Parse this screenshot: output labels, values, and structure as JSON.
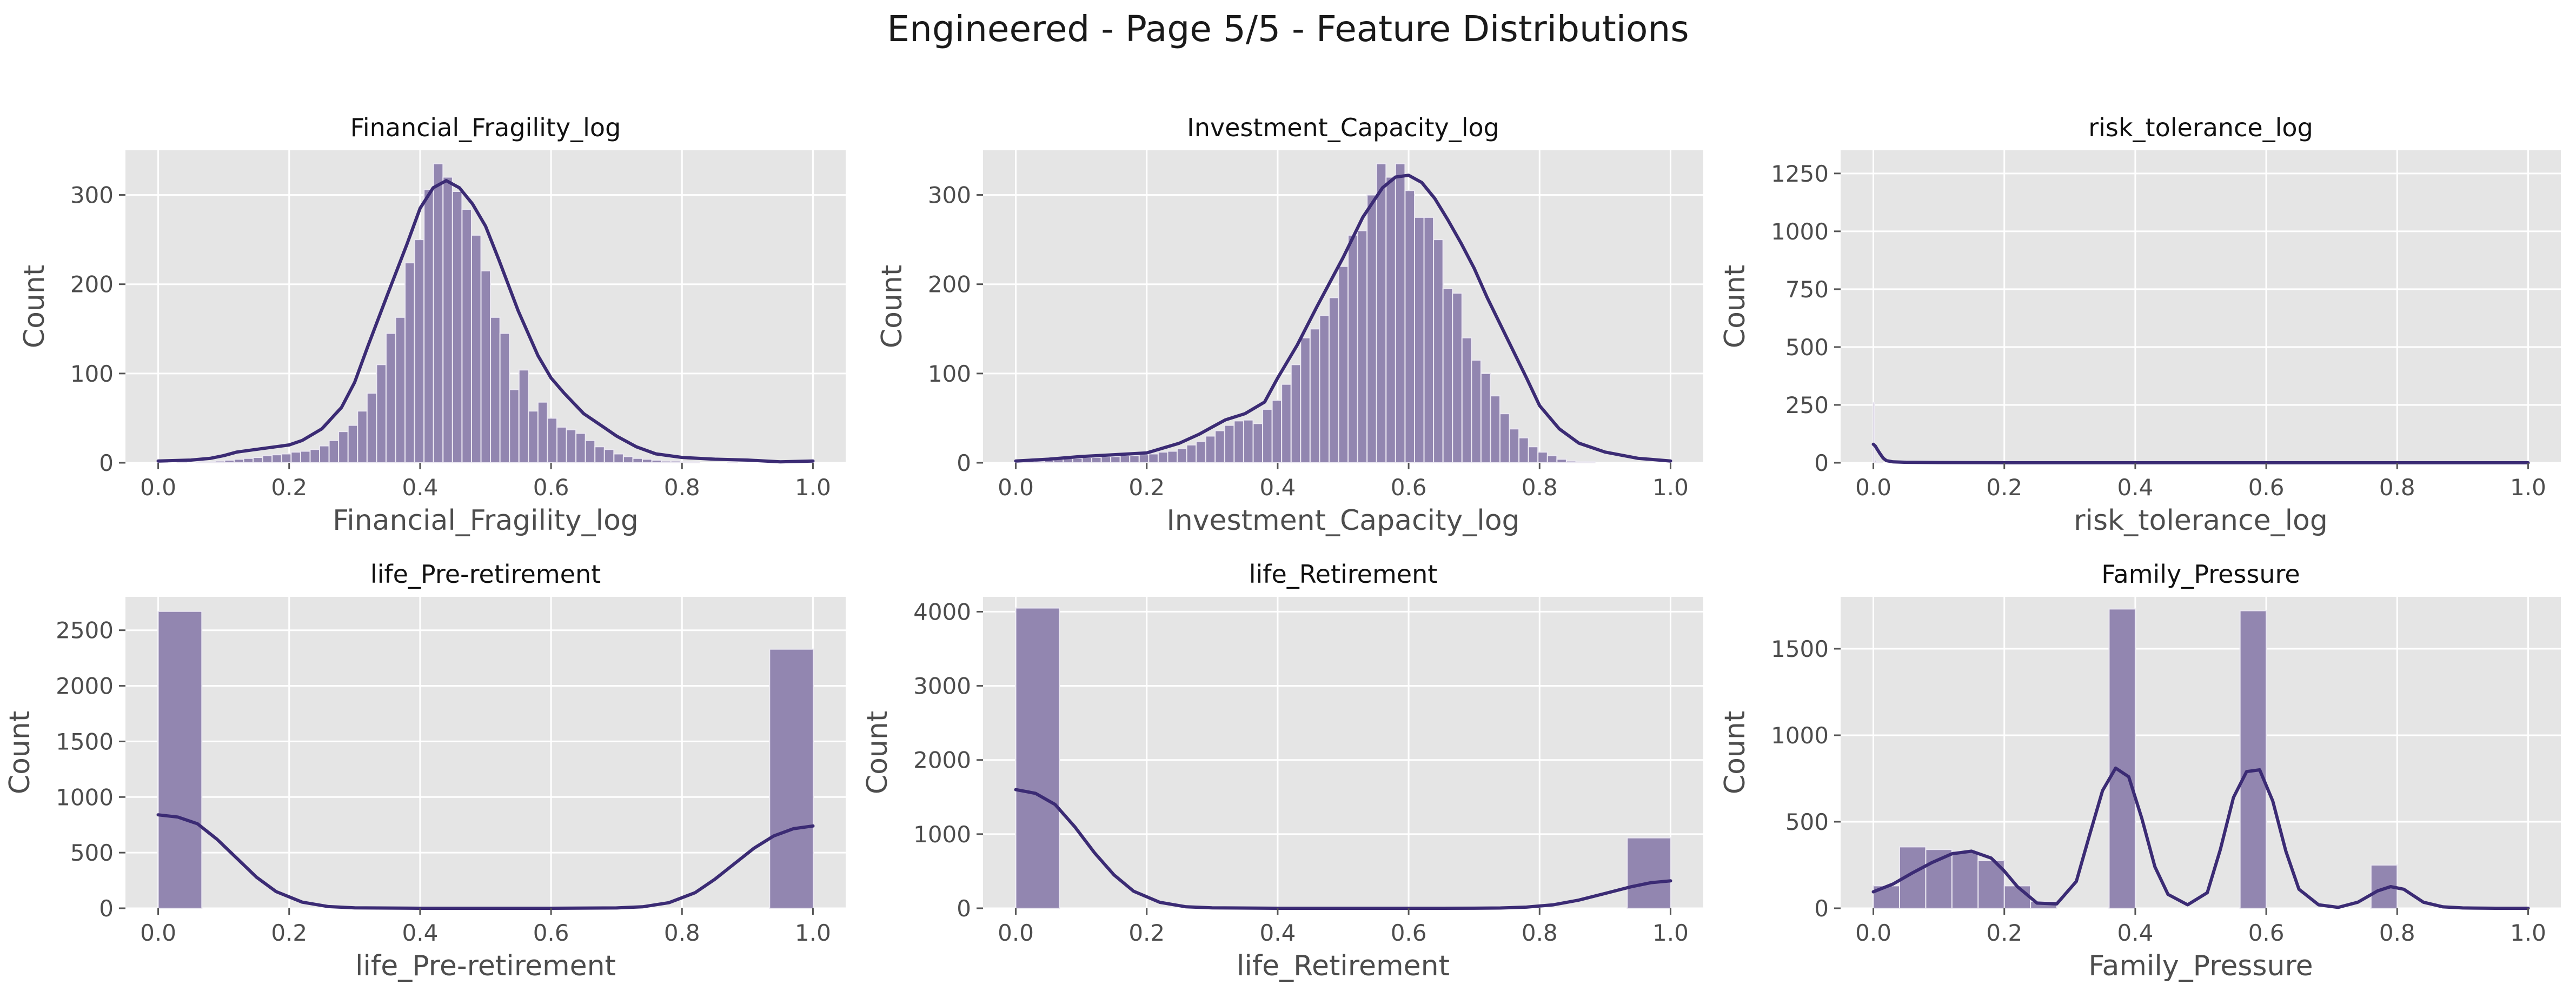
{
  "figure": {
    "title": "Engineered - Page 5/5 - Feature Distributions"
  },
  "style": {
    "panel_background": "#e5e5e5",
    "grid_color": "#ffffff",
    "bar_fill": "#9286b0",
    "bar_edge": "#ebe8f1",
    "kde_color": "#3b2b74"
  },
  "chart_data": [
    {
      "type": "bar",
      "title": "Financial_Fragility_log",
      "xlabel": "Financial_Fragility_log",
      "ylabel": "Count",
      "xlim": [
        -0.05,
        1.05
      ],
      "ylim": [
        0,
        350
      ],
      "xticks": [
        0.0,
        0.2,
        0.4,
        0.6,
        0.8,
        1.0
      ],
      "xtick_labels": [
        "0.0",
        "0.2",
        "0.4",
        "0.6",
        "0.8",
        "1.0"
      ],
      "yticks": [
        0,
        100,
        200,
        300
      ],
      "ytick_labels": [
        "0",
        "100",
        "200",
        "300"
      ],
      "grid": true,
      "bin_start": 0.0,
      "bin_width": 0.0145,
      "values": [
        1,
        0,
        1,
        0,
        1,
        1,
        2,
        3,
        4,
        5,
        6,
        8,
        9,
        10,
        12,
        13,
        15,
        19,
        25,
        35,
        42,
        58,
        78,
        110,
        145,
        163,
        224,
        250,
        306,
        335,
        320,
        304,
        284,
        255,
        215,
        163,
        145,
        82,
        104,
        58,
        68,
        50,
        40,
        37,
        33,
        25,
        18,
        15,
        10,
        7,
        5,
        4,
        3,
        2,
        2,
        1,
        1,
        0,
        0,
        0,
        1,
        0,
        0,
        0,
        0,
        0,
        0,
        1,
        1
      ],
      "kde": {
        "x": [
          0.0,
          0.05,
          0.08,
          0.1,
          0.12,
          0.15,
          0.18,
          0.2,
          0.22,
          0.25,
          0.28,
          0.3,
          0.32,
          0.35,
          0.38,
          0.4,
          0.42,
          0.44,
          0.46,
          0.48,
          0.5,
          0.52,
          0.55,
          0.58,
          0.6,
          0.62,
          0.65,
          0.68,
          0.7,
          0.73,
          0.76,
          0.8,
          0.85,
          0.9,
          0.95,
          1.0
        ],
        "y": [
          2,
          3,
          5,
          8,
          12,
          15,
          18,
          20,
          25,
          38,
          62,
          90,
          130,
          188,
          245,
          285,
          308,
          316,
          308,
          290,
          265,
          228,
          170,
          120,
          95,
          78,
          55,
          40,
          30,
          18,
          10,
          6,
          4,
          3,
          1,
          2
        ]
      }
    },
    {
      "type": "bar",
      "title": "Investment_Capacity_log",
      "xlabel": "Investment_Capacity_log",
      "ylabel": "Count",
      "xlim": [
        -0.05,
        1.05
      ],
      "ylim": [
        0,
        350
      ],
      "xticks": [
        0.0,
        0.2,
        0.4,
        0.6,
        0.8,
        1.0
      ],
      "xtick_labels": [
        "0.0",
        "0.2",
        "0.4",
        "0.6",
        "0.8",
        "1.0"
      ],
      "yticks": [
        0,
        100,
        200,
        300
      ],
      "ytick_labels": [
        "0",
        "100",
        "200",
        "300"
      ],
      "grid": true,
      "bin_start": 0.0,
      "bin_width": 0.0145,
      "values": [
        1,
        1,
        2,
        3,
        4,
        5,
        5,
        6,
        6,
        7,
        7,
        8,
        8,
        9,
        10,
        12,
        13,
        16,
        20,
        24,
        30,
        36,
        42,
        47,
        48,
        44,
        60,
        70,
        88,
        110,
        140,
        150,
        165,
        185,
        220,
        255,
        260,
        300,
        335,
        320,
        335,
        305,
        275,
        275,
        250,
        195,
        190,
        140,
        115,
        100,
        75,
        55,
        38,
        28,
        18,
        12,
        8,
        4,
        2,
        1,
        1
      ],
      "kde": {
        "x": [
          0.0,
          0.05,
          0.1,
          0.15,
          0.2,
          0.25,
          0.28,
          0.3,
          0.32,
          0.35,
          0.38,
          0.4,
          0.43,
          0.46,
          0.5,
          0.53,
          0.56,
          0.58,
          0.6,
          0.62,
          0.64,
          0.66,
          0.68,
          0.7,
          0.72,
          0.75,
          0.78,
          0.8,
          0.83,
          0.86,
          0.9,
          0.95,
          1.0
        ],
        "y": [
          2,
          4,
          7,
          9,
          11,
          22,
          32,
          40,
          48,
          55,
          68,
          95,
          132,
          175,
          230,
          275,
          308,
          320,
          322,
          314,
          296,
          272,
          246,
          218,
          185,
          140,
          95,
          64,
          38,
          22,
          12,
          5,
          2
        ]
      }
    },
    {
      "type": "bar",
      "title": "risk_tolerance_log",
      "xlabel": "risk_tolerance_log",
      "ylabel": "Count",
      "xlim": [
        -0.05,
        1.05
      ],
      "ylim": [
        0,
        1350
      ],
      "xticks": [
        0.0,
        0.2,
        0.4,
        0.6,
        0.8,
        1.0
      ],
      "xtick_labels": [
        "0.0",
        "0.2",
        "0.4",
        "0.6",
        "0.8",
        "1.0"
      ],
      "yticks": [
        0,
        250,
        500,
        750,
        1000,
        1250
      ],
      "ytick_labels": [
        "0",
        "250",
        "500",
        "750",
        "1000",
        "1250"
      ],
      "grid": true,
      "bin_start": 0.0,
      "bin_width": 0.002,
      "values": [
        260,
        12,
        6,
        4,
        3,
        2,
        1
      ],
      "kde": {
        "x": [
          0.0,
          0.003,
          0.006,
          0.01,
          0.015,
          0.02,
          0.03,
          0.05,
          0.1,
          0.2,
          0.4,
          0.6,
          0.8,
          1.0
        ],
        "y": [
          80,
          72,
          58,
          40,
          20,
          9,
          4,
          2,
          1,
          0,
          0,
          0,
          0,
          0
        ]
      }
    },
    {
      "type": "bar",
      "title": "life_Pre-retirement",
      "xlabel": "life_Pre-retirement",
      "ylabel": "Count",
      "xlim": [
        -0.05,
        1.05
      ],
      "ylim": [
        0,
        2800
      ],
      "xticks": [
        0.0,
        0.2,
        0.4,
        0.6,
        0.8,
        1.0
      ],
      "xtick_labels": [
        "0.0",
        "0.2",
        "0.4",
        "0.6",
        "0.8",
        "1.0"
      ],
      "yticks": [
        0,
        500,
        1000,
        1500,
        2000,
        2500
      ],
      "ytick_labels": [
        "0",
        "500",
        "1000",
        "1500",
        "2000",
        "2500"
      ],
      "grid": true,
      "bin_start": 0.0,
      "bin_width": 0.0667,
      "values": [
        2670,
        0,
        0,
        0,
        0,
        0,
        0,
        0,
        0,
        0,
        0,
        0,
        0,
        0,
        2330
      ],
      "kde": {
        "x": [
          0.0,
          0.03,
          0.06,
          0.09,
          0.12,
          0.15,
          0.18,
          0.22,
          0.26,
          0.3,
          0.4,
          0.5,
          0.6,
          0.7,
          0.74,
          0.78,
          0.82,
          0.85,
          0.88,
          0.91,
          0.94,
          0.97,
          1.0
        ],
        "y": [
          840,
          820,
          760,
          620,
          450,
          280,
          150,
          55,
          15,
          4,
          0,
          0,
          0,
          3,
          13,
          50,
          140,
          260,
          400,
          540,
          650,
          715,
          740
        ]
      }
    },
    {
      "type": "bar",
      "title": "life_Retirement",
      "xlabel": "life_Retirement",
      "ylabel": "Count",
      "xlim": [
        -0.05,
        1.05
      ],
      "ylim": [
        0,
        4200
      ],
      "xticks": [
        0.0,
        0.2,
        0.4,
        0.6,
        0.8,
        1.0
      ],
      "xtick_labels": [
        "0.0",
        "0.2",
        "0.4",
        "0.6",
        "0.8",
        "1.0"
      ],
      "yticks": [
        0,
        1000,
        2000,
        3000,
        4000
      ],
      "ytick_labels": [
        "0",
        "1000",
        "2000",
        "3000",
        "4000"
      ],
      "grid": true,
      "bin_start": 0.0,
      "bin_width": 0.0667,
      "values": [
        4050,
        0,
        0,
        0,
        0,
        0,
        0,
        0,
        0,
        0,
        0,
        0,
        0,
        0,
        950
      ],
      "kde": {
        "x": [
          0.0,
          0.03,
          0.06,
          0.09,
          0.12,
          0.15,
          0.18,
          0.22,
          0.26,
          0.3,
          0.4,
          0.5,
          0.6,
          0.7,
          0.74,
          0.78,
          0.82,
          0.86,
          0.9,
          0.94,
          0.97,
          1.0
        ],
        "y": [
          1600,
          1550,
          1400,
          1100,
          750,
          450,
          230,
          80,
          20,
          5,
          0,
          0,
          0,
          1,
          4,
          15,
          45,
          110,
          200,
          290,
          345,
          370
        ]
      }
    },
    {
      "type": "bar",
      "title": "Family_Pressure",
      "xlabel": "Family_Pressure",
      "ylabel": "Count",
      "xlim": [
        -0.05,
        1.05
      ],
      "ylim": [
        0,
        1800
      ],
      "xticks": [
        0.0,
        0.2,
        0.4,
        0.6,
        0.8,
        1.0
      ],
      "xtick_labels": [
        "0.0",
        "0.2",
        "0.4",
        "0.6",
        "0.8",
        "1.0"
      ],
      "yticks": [
        0,
        500,
        1000,
        1500
      ],
      "ytick_labels": [
        "0",
        "500",
        "1000",
        "1500"
      ],
      "grid": true,
      "bin_start": 0.0,
      "bin_width": 0.04,
      "values": [
        130,
        355,
        340,
        330,
        275,
        130,
        40,
        0,
        0,
        1730,
        0,
        0,
        0,
        0,
        1720,
        0,
        0,
        0,
        0,
        250,
        0,
        0,
        0,
        0,
        0
      ],
      "kde": {
        "x": [
          0.0,
          0.03,
          0.06,
          0.09,
          0.12,
          0.15,
          0.18,
          0.2,
          0.22,
          0.25,
          0.28,
          0.31,
          0.33,
          0.35,
          0.37,
          0.39,
          0.41,
          0.43,
          0.45,
          0.48,
          0.51,
          0.53,
          0.55,
          0.57,
          0.59,
          0.61,
          0.63,
          0.65,
          0.68,
          0.71,
          0.74,
          0.77,
          0.79,
          0.81,
          0.84,
          0.87,
          0.9,
          0.95,
          1.0
        ],
        "y": [
          95,
          140,
          205,
          265,
          315,
          330,
          290,
          215,
          125,
          30,
          25,
          155,
          420,
          680,
          810,
          760,
          520,
          240,
          80,
          20,
          90,
          340,
          640,
          790,
          800,
          620,
          330,
          110,
          20,
          5,
          35,
          100,
          125,
          110,
          35,
          8,
          2,
          0,
          0
        ]
      }
    }
  ]
}
